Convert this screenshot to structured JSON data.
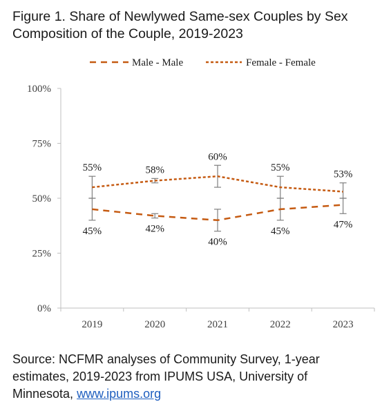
{
  "title_line1": "Figure 1. Share of Newlywed Same-sex Couples by Sex",
  "title_line2": "Composition of the Couple, 2019-2023",
  "source_line1": "Source: NCFMR analyses of Community Survey, 1-year",
  "source_line2": "estimates, 2019-2023 from IPUMS USA, University of",
  "source_prefix": "Minnesota, ",
  "source_link": "www.ipums.org",
  "colors": {
    "series": "#c55a11",
    "axis": "#bfbfbf",
    "error_bar": "#7f7f7f",
    "text": "#404040"
  },
  "chart_data": {
    "type": "line",
    "categories": [
      "2019",
      "2020",
      "2021",
      "2022",
      "2023"
    ],
    "ylim": [
      0,
      100
    ],
    "yticks": [
      0,
      25,
      50,
      75,
      100
    ],
    "ytick_labels": [
      "0%",
      "25%",
      "50%",
      "75%",
      "100%"
    ],
    "legend_position": "top",
    "grid": false,
    "series": [
      {
        "name": "Male - Male",
        "dash": "long-dash",
        "values": [
          45,
          42,
          40,
          45,
          47
        ],
        "labels": [
          "45%",
          "42%",
          "40%",
          "45%",
          "47%"
        ],
        "error_low": [
          40,
          41,
          35,
          40,
          43
        ],
        "error_high": [
          50,
          43,
          45,
          50,
          50
        ]
      },
      {
        "name": "Female - Female",
        "dash": "short-dash",
        "values": [
          55,
          58,
          60,
          55,
          53
        ],
        "labels": [
          "55%",
          "58%",
          "60%",
          "55%",
          "53%"
        ],
        "error_low": [
          50,
          57,
          55,
          50,
          50
        ],
        "error_high": [
          60,
          59,
          65,
          60,
          57
        ]
      }
    ]
  }
}
